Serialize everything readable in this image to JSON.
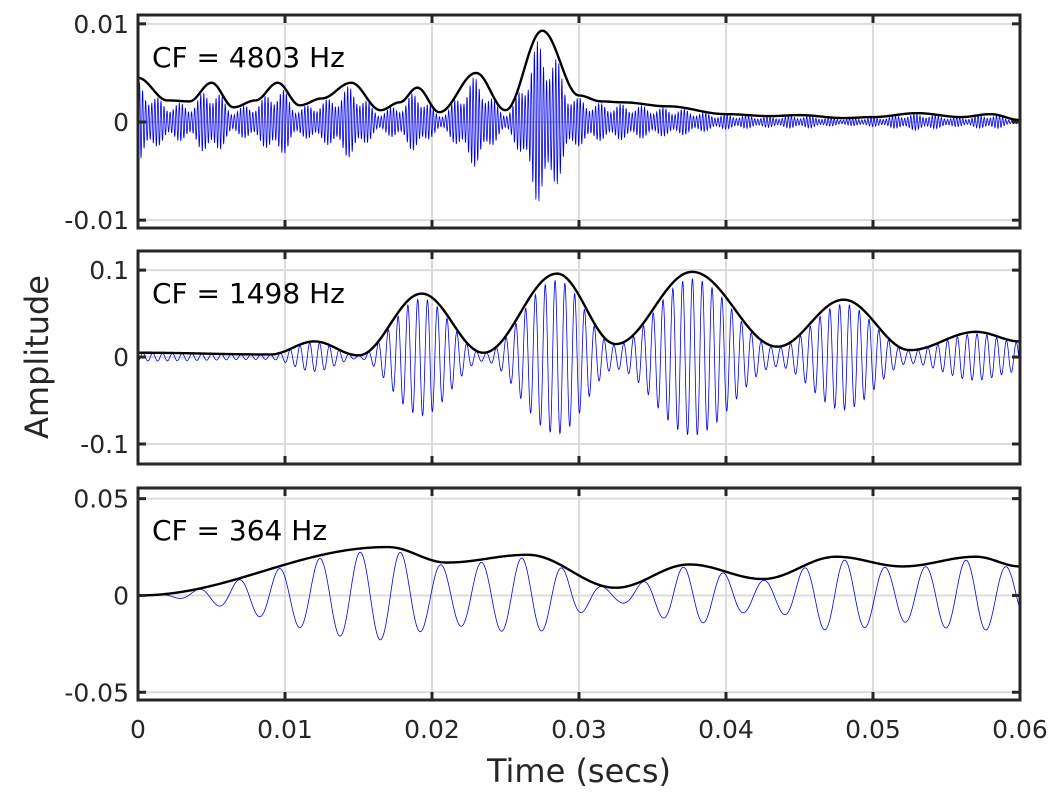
{
  "chart_data": {
    "type": "line",
    "xlabel": "Time (secs)",
    "ylabel": "Amplitude",
    "xlim": [
      0,
      0.06
    ],
    "xticks": [
      0,
      0.01,
      0.02,
      0.03,
      0.04,
      0.05,
      0.06
    ],
    "xtick_labels": [
      "0",
      "0.01",
      "0.02",
      "0.03",
      "0.04",
      "0.05",
      "0.06"
    ],
    "grid": true,
    "colors": {
      "signal": "#0000ee",
      "envelope": "#000000",
      "grid": "#dcdcdc",
      "axes": "#262626"
    },
    "panels": [
      {
        "annotation": "CF = 4803 Hz",
        "cf_hz": 4803,
        "ylim": [
          -0.0108,
          0.0109
        ],
        "yticks": [
          -0.01,
          0,
          0.01
        ],
        "ytick_labels": [
          "-0.01",
          "0",
          "0.01"
        ],
        "series": [
          {
            "name": "filtered signal",
            "type": "oscillation"
          },
          {
            "name": "envelope",
            "t": [
              0,
              0.002,
              0.0035,
              0.005,
              0.0065,
              0.008,
              0.0095,
              0.011,
              0.0125,
              0.0145,
              0.0165,
              0.0178,
              0.019,
              0.0205,
              0.023,
              0.025,
              0.0275,
              0.03,
              0.0315,
              0.033,
              0.036,
              0.04,
              0.043,
              0.045,
              0.048,
              0.05,
              0.053,
              0.056,
              0.058,
              0.06
            ],
            "values": [
              0.0045,
              0.0022,
              0.0021,
              0.004,
              0.0015,
              0.0022,
              0.004,
              0.0017,
              0.0024,
              0.004,
              0.0012,
              0.002,
              0.0035,
              0.001,
              0.005,
              0.0012,
              0.0093,
              0.0027,
              0.0021,
              0.002,
              0.0016,
              0.0008,
              0.0006,
              0.0007,
              0.0004,
              0.0005,
              0.0009,
              0.0005,
              0.0008,
              0.0002
            ]
          }
        ]
      },
      {
        "annotation": "CF = 1498 Hz",
        "cf_hz": 1498,
        "ylim": [
          -0.123,
          0.122
        ],
        "yticks": [
          -0.1,
          0,
          0.1
        ],
        "ytick_labels": [
          "-0.1",
          "0",
          "0.1"
        ],
        "series": [
          {
            "name": "filtered signal",
            "type": "oscillation"
          },
          {
            "name": "envelope",
            "t": [
              0,
              0.009,
              0.012,
              0.015,
              0.0193,
              0.0235,
              0.0285,
              0.0325,
              0.0377,
              0.0435,
              0.048,
              0.0525,
              0.057,
              0.06
            ],
            "values": [
              0.005,
              0.003,
              0.018,
              0.002,
              0.073,
              0.005,
              0.096,
              0.015,
              0.098,
              0.012,
              0.066,
              0.008,
              0.029,
              0.018
            ]
          }
        ]
      },
      {
        "annotation": "CF = 364 Hz",
        "cf_hz": 364,
        "ylim": [
          -0.054,
          0.0555
        ],
        "yticks": [
          -0.05,
          0,
          0.05
        ],
        "ytick_labels": [
          "-0.05",
          "0",
          "0.05"
        ],
        "series": [
          {
            "name": "filtered signal",
            "type": "oscillation"
          },
          {
            "name": "envelope",
            "t": [
              0,
              0.017,
              0.021,
              0.0265,
              0.0325,
              0.0375,
              0.0425,
              0.0475,
              0.052,
              0.057,
              0.06
            ],
            "values": [
              0.0,
              0.025,
              0.017,
              0.021,
              0.004,
              0.016,
              0.0085,
              0.02,
              0.015,
              0.02,
              0.015
            ]
          }
        ]
      }
    ]
  }
}
